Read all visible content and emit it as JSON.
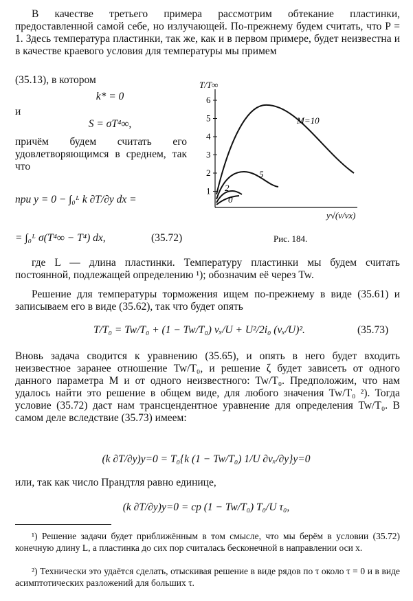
{
  "paragraphs": [
    "В качестве третьего примера рассмотрим обтекание пластинки, предоставленной самой себе, но излучающей. По-прежнему будем считать, что P = 1. Здесь температура пластинки, так же, как и в первом примере, будет неизвестна и в качестве краевого условия для температуры мы примем",
    "(35.13), в котором",
    "k* = 0",
    "и",
    "S = σT⁴∞,",
    "причём будем считать его удовлетворяющимся в среднем, так что",
    "где L — длина пластинки. Температуру пластинки мы будем считать постоянной, подлежащей определению ¹); обозначим её через Tw.",
    "Решение для температуры торможения ищем по-прежнему в виде (35.61) и записываем его в виде (35.62), так что будет опять",
    "Вновь задача сводится к уравнению (35.65), и опять в него будет входить неизвестное заранее отношение Tw/T₀, и решение ζ будет зависеть от одного данного параметра M и от одного неизвестного: Tw/T₀. Предположим, что нам удалось найти это решение в общем виде, для любого значения Tw/T₀ ²). Тогда условие (35.72) даст нам трансцендентное уравнение для определения Tw/T₀. В самом деле вследствие (35.73) имеем:",
    "или, так как число Прандтля равно единице,"
  ],
  "equations": [
    {
      "text": "при y = 0   − ∫₀ᴸ k ∂T/∂y dx ="
    },
    {
      "text": "= ∫₀ᴸ σ(T⁴∞ − T⁴) dx,",
      "number": "(35.72)"
    },
    {
      "text": "T/T₀ = Tw/T₀ + (1 − Tw/T₀) vₓ/U + U²/2i₀ (vₓ/U)².",
      "number": "(35.73)"
    },
    {
      "text": "(k ∂T/∂y)y=0 = T₀{k (1 − Tw/T₀) 1/U ∂vₓ/∂y}y=0"
    },
    {
      "text": "(k ∂T/∂y)y=0 = cp (1 − Tw/T₀) T₀/U τ₀,"
    }
  ],
  "figure": {
    "y_label": "T/T∞",
    "x_label": "y√(v/νx)",
    "yticks": [
      1,
      2,
      3,
      4,
      5,
      6
    ],
    "curve_labels": [
      "M=10",
      "5",
      "2",
      "0"
    ],
    "caption": "Рис. 184."
  },
  "footnotes": [
    "¹) Решение задачи будет приближённым в том смысле, что мы берём в условии (35.72) конечную длину L, а пластинка до сих пор считалась бесконечной в направлении оси x.",
    "²) Технически это удаётся сделать, отыскивая решение в виде рядов по τ около τ = 0 и в виде асимптотических разложений для больших τ."
  ]
}
